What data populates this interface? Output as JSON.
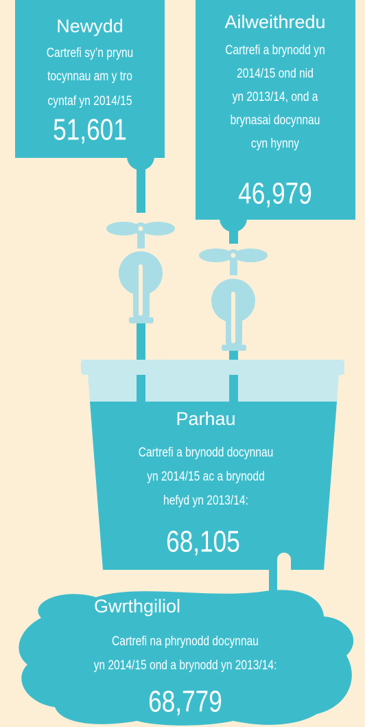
{
  "boxes": [
    {
      "title": "Newydd",
      "lines": [
        "Cartrefi sy’n prynu",
        "tocynnau am y tro",
        "cyntaf yn 2014/15"
      ],
      "value": "51,601"
    },
    {
      "title": "Ailweithredu",
      "lines": [
        "Cartrefi a brynodd yn",
        "2014/15 ond nid",
        "yn 2013/14, ond a",
        "brynasai docynnau",
        "cyn hynny"
      ],
      "value": "46,979"
    },
    {
      "title": "Parhau",
      "lines": [
        "Cartrefi a brynodd docynnau",
        "yn 2014/15 ac a brynodd",
        "hefyd yn 2013/14:"
      ],
      "value": "68,105"
    },
    {
      "title": "Gwrthgiliol",
      "lines": [
        "Cartrefi na phrynodd docynnau",
        "yn 2014/15 ond a brynodd yn 2013/14:"
      ],
      "value": "68,779"
    }
  ]
}
